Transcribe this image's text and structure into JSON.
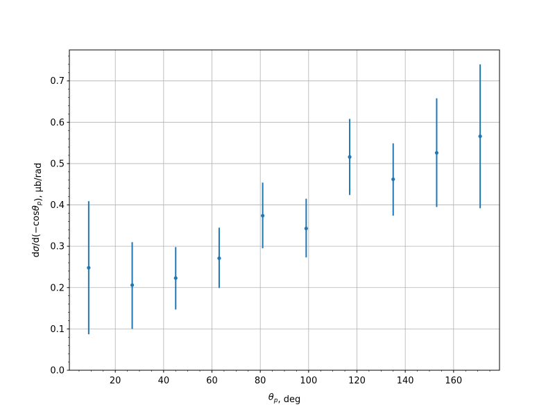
{
  "chart_data": {
    "type": "scatter",
    "title": "",
    "xlabel": "θ_p, deg",
    "ylabel": "dσ/d(−cosθ_p), μb/rad",
    "xlim": [
      1,
      179
    ],
    "ylim": [
      0,
      0.775
    ],
    "xticks": [
      20,
      40,
      60,
      80,
      100,
      120,
      140,
      160
    ],
    "yticks": [
      0.0,
      0.1,
      0.2,
      0.3,
      0.4,
      0.5,
      0.6,
      0.7
    ],
    "grid": true,
    "minor_ticks": true,
    "color": "#1f77b4",
    "x": [
      9,
      27,
      45,
      63,
      81,
      99,
      117,
      135,
      153,
      171
    ],
    "y": [
      0.248,
      0.206,
      0.223,
      0.271,
      0.374,
      0.343,
      0.516,
      0.462,
      0.526,
      0.566
    ],
    "yerr_low": [
      0.087,
      0.1,
      0.147,
      0.199,
      0.295,
      0.273,
      0.424,
      0.374,
      0.395,
      0.392
    ],
    "yerr_high": [
      0.409,
      0.31,
      0.298,
      0.345,
      0.454,
      0.415,
      0.608,
      0.549,
      0.658,
      0.74
    ]
  }
}
